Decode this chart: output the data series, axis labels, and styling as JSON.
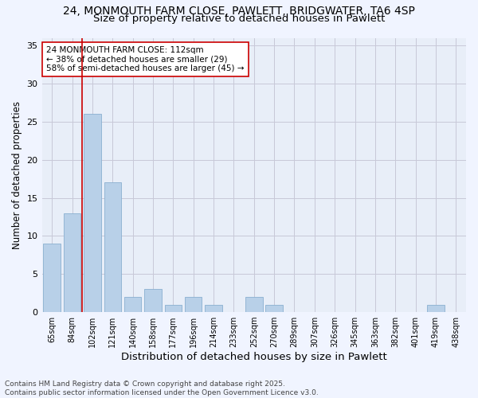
{
  "title_line1": "24, MONMOUTH FARM CLOSE, PAWLETT, BRIDGWATER, TA6 4SP",
  "title_line2": "Size of property relative to detached houses in Pawlett",
  "xlabel": "Distribution of detached houses by size in Pawlett",
  "ylabel": "Number of detached properties",
  "bar_labels": [
    "65sqm",
    "84sqm",
    "102sqm",
    "121sqm",
    "140sqm",
    "158sqm",
    "177sqm",
    "196sqm",
    "214sqm",
    "233sqm",
    "252sqm",
    "270sqm",
    "289sqm",
    "307sqm",
    "326sqm",
    "345sqm",
    "363sqm",
    "382sqm",
    "401sqm",
    "419sqm",
    "438sqm"
  ],
  "bar_values": [
    9,
    13,
    26,
    17,
    2,
    3,
    1,
    2,
    1,
    0,
    2,
    1,
    0,
    0,
    0,
    0,
    0,
    0,
    0,
    1,
    0
  ],
  "bar_color": "#b8d0e8",
  "bar_edgecolor": "#8ab0d0",
  "vline_x": 2.0,
  "vline_color": "#cc0000",
  "annotation_text": "24 MONMOUTH FARM CLOSE: 112sqm\n← 38% of detached houses are smaller (29)\n58% of semi-detached houses are larger (45) →",
  "annotation_fontsize": 7.5,
  "annotation_box_color": "#ffffff",
  "annotation_edge_color": "#cc0000",
  "ylim": [
    0,
    36
  ],
  "yticks": [
    0,
    5,
    10,
    15,
    20,
    25,
    30,
    35
  ],
  "footer_text": "Contains HM Land Registry data © Crown copyright and database right 2025.\nContains public sector information licensed under the Open Government Licence v3.0.",
  "bg_color": "#e8eef8",
  "grid_color": "#c8c8d8",
  "title_fontsize": 10,
  "subtitle_fontsize": 9.5,
  "axis_label_fontsize": 8.5,
  "tick_fontsize": 7,
  "footer_fontsize": 6.5
}
